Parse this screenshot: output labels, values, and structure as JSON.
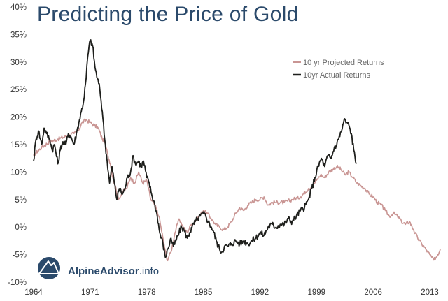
{
  "chart_data": {
    "type": "line",
    "title": "Predicting the Price of Gold",
    "xlabel": "",
    "ylabel": "",
    "xlim": [
      1964,
      2014.5
    ],
    "ylim": [
      -10,
      40
    ],
    "x_ticks": [
      {
        "value": 1964,
        "label": "1964"
      },
      {
        "value": 1971,
        "label": "1971"
      },
      {
        "value": 1978,
        "label": "1978"
      },
      {
        "value": 1985,
        "label": "1985"
      },
      {
        "value": 1992,
        "label": "1992"
      },
      {
        "value": 1999,
        "label": "1999"
      },
      {
        "value": 2006,
        "label": "2006"
      },
      {
        "value": 2013,
        "label": "2013"
      }
    ],
    "y_ticks": [
      {
        "value": -10,
        "label": "-10%"
      },
      {
        "value": -5,
        "label": "-5%"
      },
      {
        "value": 0,
        "label": "0%"
      },
      {
        "value": 5,
        "label": "5%"
      },
      {
        "value": 10,
        "label": "10%"
      },
      {
        "value": 15,
        "label": "15%"
      },
      {
        "value": 20,
        "label": "20%"
      },
      {
        "value": 25,
        "label": "25%"
      },
      {
        "value": 30,
        "label": "30%"
      },
      {
        "value": 35,
        "label": "35%"
      },
      {
        "value": 40,
        "label": "40%"
      }
    ],
    "grid": false,
    "legend_position": "top-right",
    "series": [
      {
        "name": "10 yr Projected Returns",
        "color": "#c99593",
        "x": [
          1964.0,
          1965.0,
          1966.0,
          1967.0,
          1968.0,
          1969.0,
          1969.5,
          1970.0,
          1970.5,
          1971.0,
          1971.5,
          1972.0,
          1972.5,
          1972.8,
          1973.2,
          1973.5,
          1973.8,
          1974.1,
          1974.5,
          1975.0,
          1975.5,
          1976.0,
          1976.5,
          1977.0,
          1977.5,
          1978.0,
          1978.5,
          1979.0,
          1979.5,
          1980.0,
          1980.5,
          1981.0,
          1981.5,
          1982.0,
          1982.5,
          1983.0,
          1983.5,
          1984.0,
          1984.5,
          1985.0,
          1985.5,
          1986.0,
          1986.5,
          1987.0,
          1987.5,
          1988.0,
          1988.5,
          1989.0,
          1989.5,
          1990.0,
          1990.5,
          1991.0,
          1991.5,
          1992.0,
          1992.5,
          1993.0,
          1993.5,
          1994.0,
          1995.0,
          1996.0,
          1997.0,
          1998.0,
          1998.5,
          1999.0,
          1999.5,
          2000.0,
          2000.5,
          2001.0,
          2001.5,
          2002.0,
          2002.5,
          2003.0,
          2003.5,
          2004.0,
          2004.5,
          2005.0,
          2005.5,
          2006.0,
          2006.5,
          2007.0,
          2007.5,
          2008.0,
          2008.5,
          2009.0,
          2009.5,
          2010.0,
          2010.5,
          2011.0,
          2011.5,
          2012.0,
          2012.5,
          2013.0,
          2013.5,
          2014.0,
          2014.3
        ],
        "values": [
          13.0,
          14.5,
          15.5,
          16.0,
          16.5,
          17.0,
          17.5,
          19.0,
          19.5,
          19.0,
          18.5,
          18.0,
          16.0,
          15.5,
          13.0,
          11.5,
          9.0,
          7.5,
          5.0,
          6.5,
          7.0,
          9.0,
          8.0,
          10.0,
          8.0,
          8.5,
          5.0,
          4.0,
          2.0,
          -2.0,
          -6.0,
          -4.5,
          -1.0,
          1.5,
          0.0,
          -1.0,
          0.5,
          1.0,
          2.0,
          3.0,
          2.5,
          1.5,
          0.5,
          0.0,
          -0.5,
          0.0,
          1.0,
          2.5,
          3.5,
          3.0,
          4.0,
          4.5,
          5.0,
          5.0,
          5.5,
          4.0,
          4.5,
          4.5,
          4.5,
          5.0,
          5.5,
          7.0,
          7.5,
          8.5,
          9.5,
          9.0,
          10.0,
          10.5,
          11.0,
          10.5,
          9.5,
          10.0,
          9.0,
          8.0,
          7.5,
          7.0,
          6.0,
          5.5,
          4.5,
          4.0,
          3.0,
          2.0,
          2.5,
          2.0,
          1.0,
          0.5,
          1.0,
          -0.5,
          -2.0,
          -3.0,
          -4.0,
          -5.0,
          -6.0,
          -5.0,
          -4.0
        ]
      },
      {
        "name": "10yr Actual Returns",
        "color": "#1e1f1c",
        "x": [
          1964.0,
          1964.3,
          1964.6,
          1965.0,
          1965.3,
          1965.6,
          1966.0,
          1966.3,
          1966.6,
          1967.0,
          1967.3,
          1967.6,
          1968.0,
          1968.3,
          1968.6,
          1969.0,
          1969.3,
          1969.6,
          1969.9,
          1970.2,
          1970.5,
          1970.7,
          1971.0,
          1971.3,
          1971.6,
          1971.9,
          1972.2,
          1972.5,
          1972.8,
          1973.1,
          1973.4,
          1973.7,
          1974.0,
          1974.3,
          1974.6,
          1975.0,
          1975.3,
          1975.6,
          1976.0,
          1976.3,
          1976.6,
          1977.0,
          1977.3,
          1977.6,
          1978.0,
          1978.3,
          1978.6,
          1979.0,
          1979.3,
          1979.6,
          1980.0,
          1980.3,
          1980.6,
          1981.0,
          1981.3,
          1981.6,
          1982.0,
          1982.3,
          1982.6,
          1983.0,
          1983.3,
          1983.6,
          1984.0,
          1984.3,
          1984.6,
          1985.0,
          1985.3,
          1985.6,
          1986.0,
          1986.3,
          1986.6,
          1987.0,
          1987.3,
          1987.6,
          1988.0,
          1988.5,
          1989.0,
          1989.5,
          1990.0,
          1990.5,
          1991.0,
          1991.5,
          1992.0,
          1992.5,
          1993.0,
          1993.5,
          1994.0,
          1994.5,
          1995.0,
          1995.5,
          1996.0,
          1996.5,
          1997.0,
          1997.5,
          1998.0,
          1998.4,
          1998.8,
          1999.2,
          1999.6,
          2000.0,
          2000.4,
          2000.8,
          2001.2,
          2001.5,
          2001.8,
          2002.1,
          2002.4,
          2002.7,
          2003.0,
          2003.3,
          2003.6,
          2003.9
        ],
        "values": [
          12.0,
          16.0,
          17.5,
          15.0,
          18.0,
          17.0,
          16.0,
          14.0,
          15.0,
          11.5,
          14.0,
          15.5,
          15.0,
          17.0,
          16.5,
          15.0,
          17.0,
          19.0,
          21.0,
          23.0,
          27.0,
          31.0,
          34.0,
          33.0,
          29.0,
          27.0,
          25.0,
          21.0,
          16.0,
          12.0,
          8.0,
          11.0,
          8.0,
          5.0,
          7.0,
          6.0,
          7.0,
          9.0,
          10.0,
          13.0,
          11.5,
          12.0,
          11.0,
          12.0,
          9.0,
          8.0,
          6.0,
          4.0,
          2.0,
          -1.0,
          -3.0,
          -5.5,
          -4.0,
          -2.0,
          -3.5,
          -2.5,
          -1.0,
          0.0,
          -0.5,
          -2.0,
          -1.0,
          0.0,
          1.0,
          1.5,
          2.0,
          2.5,
          2.0,
          1.0,
          0.0,
          -1.0,
          -2.5,
          -4.0,
          -4.5,
          -3.5,
          -3.5,
          -3.0,
          -2.5,
          -3.0,
          -2.5,
          -3.0,
          -2.5,
          -2.0,
          -1.0,
          -1.5,
          0.0,
          0.5,
          0.0,
          0.5,
          0.5,
          1.5,
          1.0,
          2.0,
          3.0,
          3.5,
          5.0,
          7.0,
          9.0,
          11.0,
          12.5,
          11.0,
          13.0,
          12.5,
          14.5,
          15.0,
          16.5,
          17.5,
          19.5,
          19.0,
          18.5,
          17.0,
          14.0,
          11.5
        ]
      }
    ]
  },
  "logo": {
    "brand": "AlpineAdvisor",
    "suffix": ".info",
    "brand_color": "#2b4a6b"
  }
}
